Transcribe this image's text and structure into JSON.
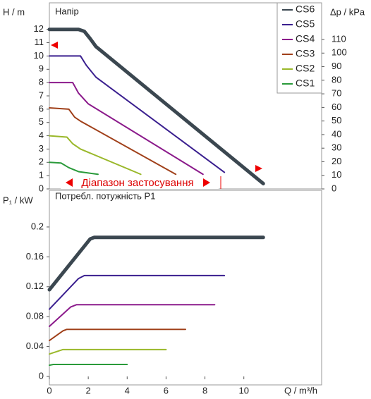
{
  "chart_data": [
    {
      "type": "line",
      "title": "Напір",
      "ylabel": "H / m",
      "y2label": "Δp / kPa",
      "range_label": "Діапазон застосування",
      "xlim": [
        0,
        14
      ],
      "ylim": [
        0,
        14
      ],
      "yticks": [
        0,
        1,
        2,
        3,
        4,
        5,
        6,
        7,
        8,
        9,
        10,
        11,
        12
      ],
      "y2lim": [
        0,
        137
      ],
      "y2ticks": [
        0,
        10,
        20,
        30,
        40,
        50,
        60,
        70,
        80,
        90,
        100,
        110
      ],
      "grid": false,
      "legend": "top-right",
      "series": [
        {
          "name": "CS6",
          "color": "#3b4750",
          "x": [
            0,
            1.5,
            1.8,
            2.1,
            2.4,
            11
          ],
          "values": [
            12,
            12,
            11.85,
            11.3,
            10.7,
            0.4
          ]
        },
        {
          "name": "CS5",
          "color": "#3a1f8f",
          "x": [
            0,
            1.6,
            1.9,
            2.4,
            9
          ],
          "values": [
            10,
            10,
            9.3,
            8.4,
            1.25
          ]
        },
        {
          "name": "CS4",
          "color": "#8b1a8b",
          "x": [
            0,
            1.2,
            1.5,
            2,
            7.9
          ],
          "values": [
            8,
            8,
            7.2,
            6.4,
            1.1
          ]
        },
        {
          "name": "CS3",
          "color": "#a0401a",
          "x": [
            0,
            1,
            1.3,
            1.6,
            6.5
          ],
          "values": [
            6.1,
            6,
            5.4,
            5.1,
            1.1
          ]
        },
        {
          "name": "CS2",
          "color": "#9ab82a",
          "x": [
            0,
            0.9,
            1.2,
            1.6,
            4.7
          ],
          "values": [
            4,
            3.9,
            3.4,
            3,
            1.1
          ]
        },
        {
          "name": "CS1",
          "color": "#2a9a3a",
          "x": [
            0,
            0.6,
            1,
            1.5,
            2.5
          ],
          "values": [
            2,
            1.95,
            1.6,
            1.3,
            1.1
          ]
        }
      ]
    },
    {
      "type": "line",
      "title": "Потребл. потужність P1",
      "ylabel": "P₁ / kW",
      "xlabel": "Q / m³/h",
      "xlim": [
        0,
        14
      ],
      "xticks": [
        0,
        2,
        4,
        6,
        8,
        10
      ],
      "ylim": [
        0,
        0.249
      ],
      "yticks": [
        0,
        0.04,
        0.08,
        0.12,
        0.16,
        0.2
      ],
      "grid": false,
      "series": [
        {
          "name": "CS6",
          "color": "#3b4750",
          "x": [
            0,
            2.1,
            2.3,
            11
          ],
          "values": [
            0.116,
            0.184,
            0.186,
            0.186
          ]
        },
        {
          "name": "CS5",
          "color": "#3a1f8f",
          "x": [
            0,
            1.5,
            1.8,
            9
          ],
          "values": [
            0.09,
            0.131,
            0.135,
            0.135
          ]
        },
        {
          "name": "CS4",
          "color": "#8b1a8b",
          "x": [
            0,
            1.1,
            1.4,
            8.5
          ],
          "values": [
            0.067,
            0.093,
            0.096,
            0.096
          ]
        },
        {
          "name": "CS3",
          "color": "#a0401a",
          "x": [
            0,
            0.7,
            0.9,
            7
          ],
          "values": [
            0.048,
            0.061,
            0.063,
            0.063
          ]
        },
        {
          "name": "CS2",
          "color": "#9ab82a",
          "x": [
            0,
            0.7,
            6
          ],
          "values": [
            0.03,
            0.036,
            0.036
          ]
        },
        {
          "name": "CS1",
          "color": "#2a9a3a",
          "x": [
            0,
            0.2,
            4
          ],
          "values": [
            0.015,
            0.016,
            0.016
          ]
        }
      ]
    }
  ]
}
